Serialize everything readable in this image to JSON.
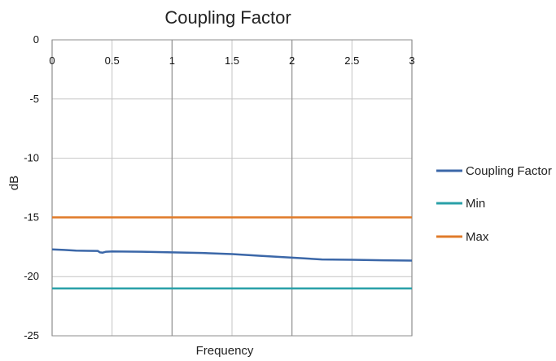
{
  "chart_data": {
    "type": "line",
    "title": "Coupling Factor",
    "xlabel": "Frequency",
    "ylabel": "dB",
    "xlim": [
      0,
      3
    ],
    "ylim": [
      -25,
      0
    ],
    "x_ticks": [
      "0",
      "0.5",
      "1",
      "1.5",
      "2",
      "2.5",
      "3"
    ],
    "y_ticks": [
      "0",
      "-5",
      "-10",
      "-15",
      "-20",
      "-25"
    ],
    "grid": true,
    "legend": "right",
    "series": [
      {
        "name": "Coupling Factor",
        "color": "#3b67a8",
        "x": [
          0,
          0.1,
          0.2,
          0.3,
          0.38,
          0.4,
          0.42,
          0.45,
          0.5,
          0.75,
          1.0,
          1.25,
          1.5,
          1.75,
          2.0,
          2.25,
          2.5,
          2.75,
          3.0
        ],
        "y": [
          -17.7,
          -17.75,
          -17.8,
          -17.82,
          -17.83,
          -17.95,
          -17.98,
          -17.9,
          -17.88,
          -17.9,
          -17.95,
          -18.0,
          -18.1,
          -18.25,
          -18.4,
          -18.55,
          -18.58,
          -18.62,
          -18.65
        ]
      },
      {
        "name": "Min",
        "color": "#2aa0a8",
        "x": [
          0,
          3
        ],
        "y": [
          -21,
          -21
        ]
      },
      {
        "name": "Max",
        "color": "#e07b2a",
        "x": [
          0,
          3
        ],
        "y": [
          -15,
          -15
        ]
      }
    ]
  }
}
